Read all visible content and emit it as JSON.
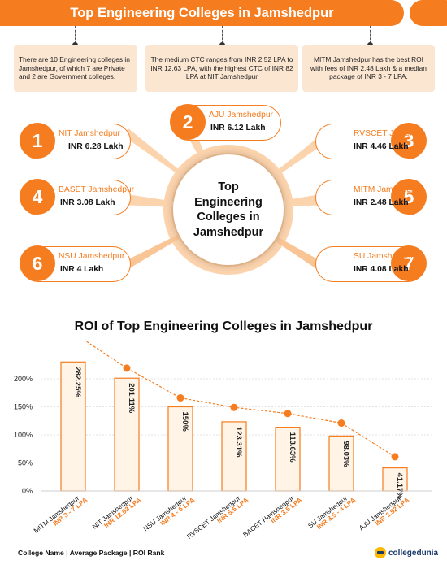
{
  "header": {
    "title": "Top Engineering Colleges in Jamshedpur"
  },
  "info_boxes": [
    "There are 10 Engineering colleges in Jamshedpur, of which 7 are Private and 2 are Government colleges.",
    "The medium CTC ranges from INR 2.52 LPA to INR 12.63 LPA, with the highest CTC of INR 82 LPA at NIT Jamshedpur",
    "MITM Jamshedpur has the best ROI with fees of INR 2.48 Lakh & a median package of INR 3 - 7 LPA."
  ],
  "hub": {
    "line1": "Top",
    "line2": "Engineering",
    "line3": "Colleges in",
    "line4": "Jamshedpur"
  },
  "colleges": [
    {
      "num": "1",
      "name": "NIT Jamshedpur",
      "package": "INR 6.28 Lakh"
    },
    {
      "num": "2",
      "name": "AJU Jamshedpur",
      "package": "INR 6.12 Lakh"
    },
    {
      "num": "3",
      "name": "RVSCET Jamshedpur",
      "package": "INR 4.46 Lakh"
    },
    {
      "num": "4",
      "name": "BASET Jamshedpur",
      "package": "INR 3.08 Lakh"
    },
    {
      "num": "5",
      "name": "MITM Jamshedpur",
      "package": "INR 2.48 Lakh"
    },
    {
      "num": "6",
      "name": "NSU Jamshedpur",
      "package": "INR 4 Lakh"
    },
    {
      "num": "7",
      "name": "SU Jamshedpur",
      "package": "INR 4.08 Lakh"
    }
  ],
  "colors": {
    "accent": "#f57c1f",
    "bar_fill": "#fff4e6",
    "info_bg": "#fbe6d2",
    "text": "#111111"
  },
  "chart_data": {
    "type": "bar",
    "title": "ROI of Top Engineering Colleges in Jamshedpur",
    "categories": [
      "MITM Jamshedpur",
      "NIT Jamshedpur",
      "NSU Jamshedpur",
      "RVSCET Jamshedpur",
      "BACET Hamshedpur",
      "SU Jamshedpur",
      "AJU Jamshedpur"
    ],
    "packages": [
      "INR 3 - 7 LPA",
      "INR 12.63 LPA",
      "INR 4 - 6 LPA",
      "INR 5.5 LPA",
      "INR 3.5 LPA",
      "INR 3.5 - 4 LPA",
      "INR 2.52 LPA"
    ],
    "values": [
      282.25,
      201.11,
      150,
      123.31,
      113.63,
      98.03,
      41.17
    ],
    "value_labels": [
      "282.25%",
      "201.11%",
      "150%",
      "123.31%",
      "113.63%",
      "98.03%",
      "41.17%"
    ],
    "trend_values": [
      282.25,
      219,
      166,
      149,
      138,
      121,
      61
    ],
    "yticks": [
      "0%",
      "50%",
      "100%",
      "150%",
      "200%"
    ],
    "ylim": [
      0,
      200
    ],
    "grid": true
  },
  "footer": {
    "legend": "College Name  |  Average Package  |  ROI Rank",
    "brand": "collegedunia"
  }
}
